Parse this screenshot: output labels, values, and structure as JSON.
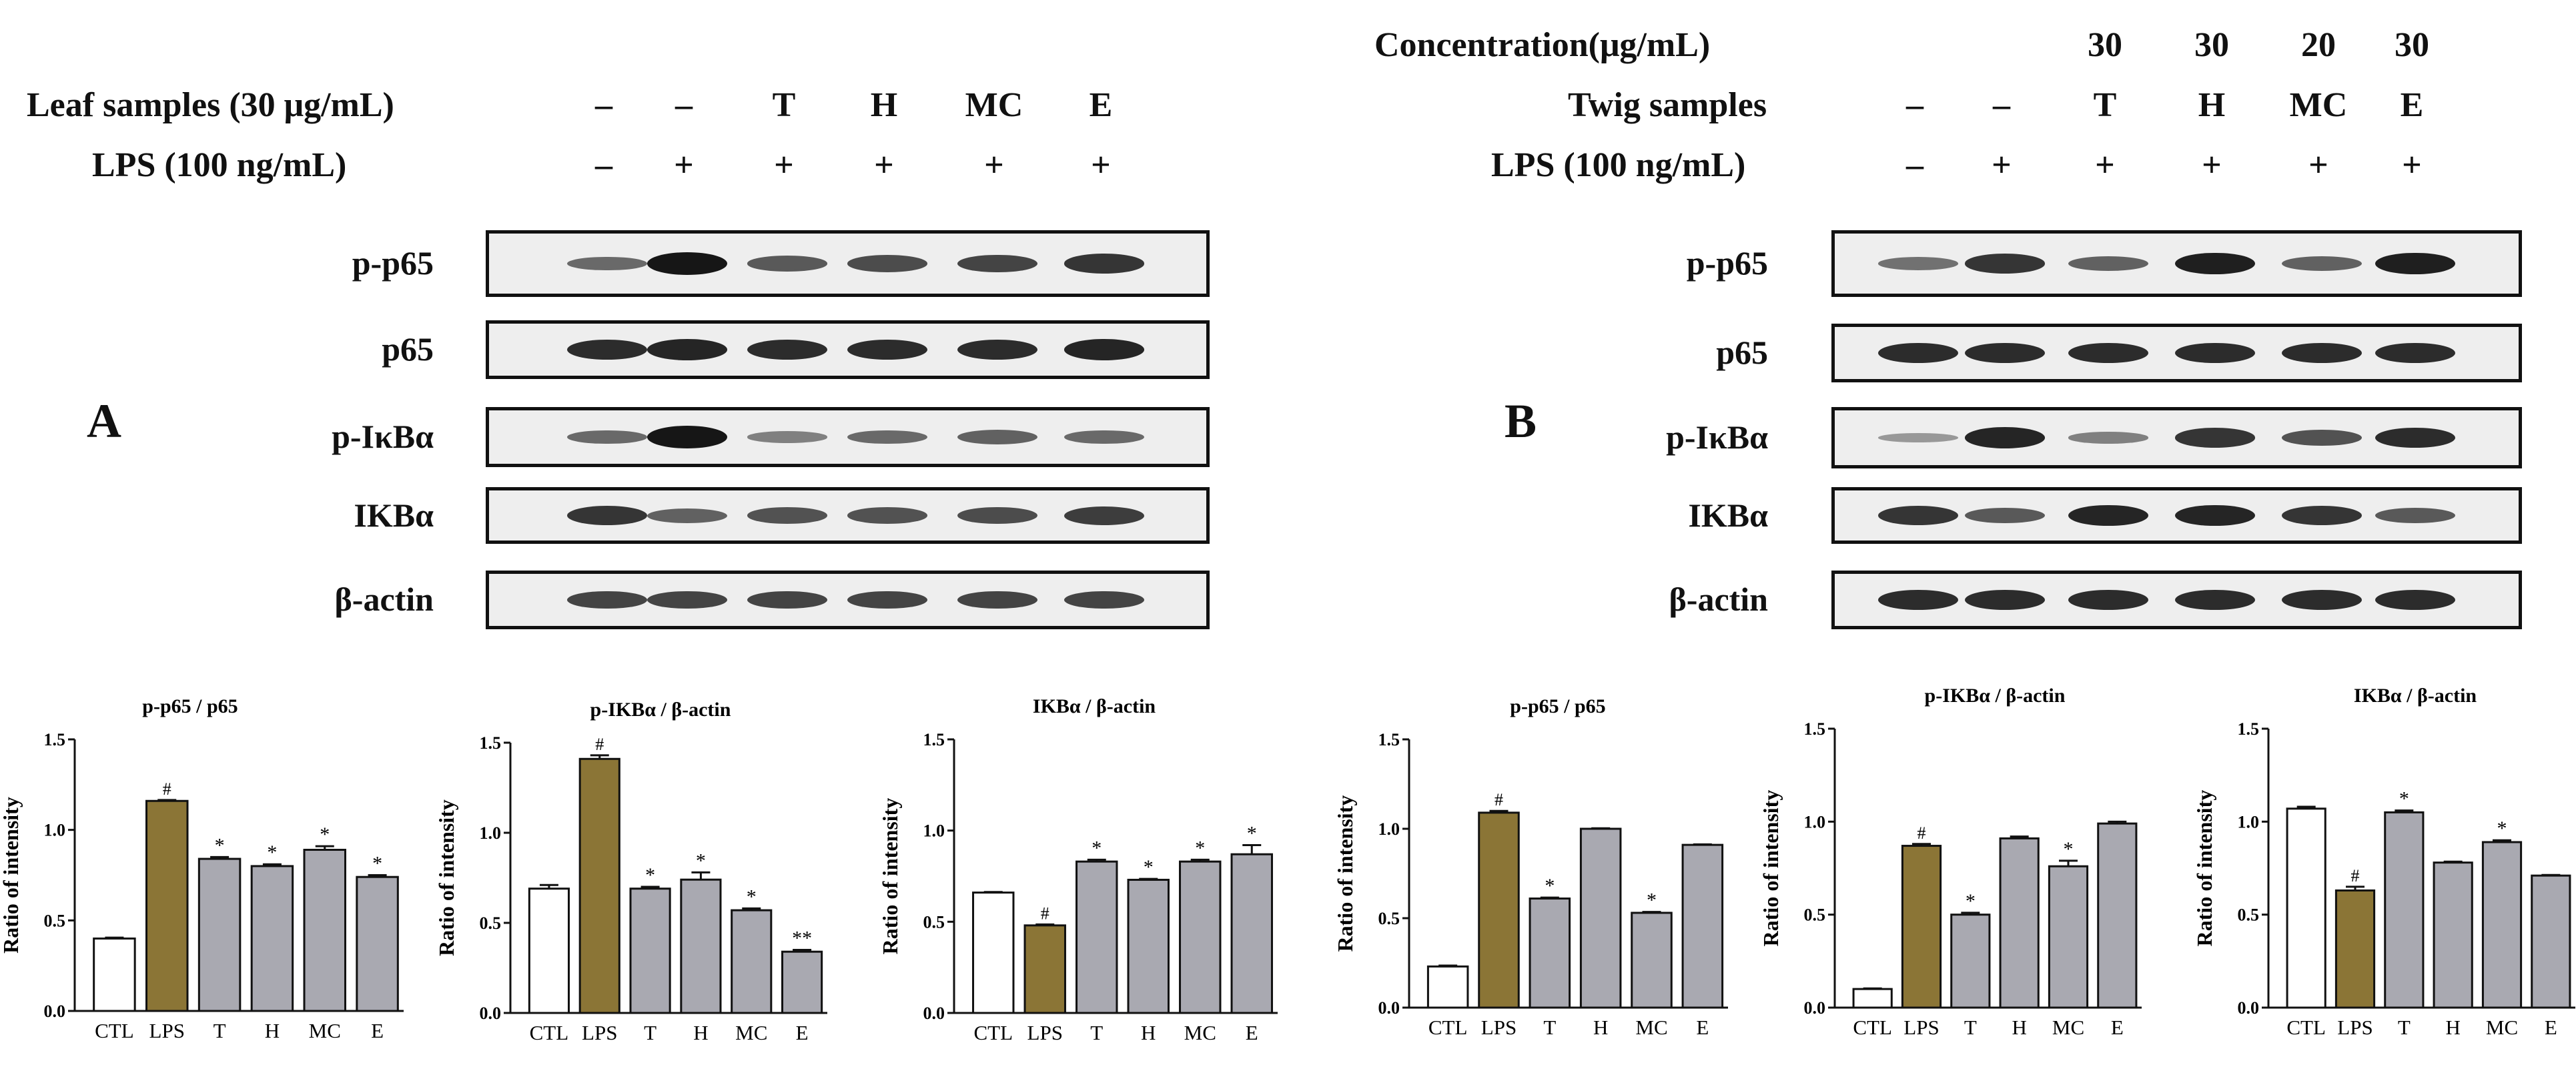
{
  "panels": [
    {
      "label": "A",
      "conc_label": null,
      "concentrations": null,
      "sample_label": "Leaf samples (30 μg/mL)",
      "samples": [
        "–",
        "–",
        "T",
        "H",
        "MC",
        "E"
      ],
      "lps_label": "LPS (100 ng/mL)",
      "lps": [
        "–",
        "+",
        "+",
        "+",
        "+",
        "+"
      ],
      "rows": [
        {
          "name": "p-p65",
          "bands": [
            0.45,
            1.0,
            0.55,
            0.65,
            0.7,
            0.8
          ]
        },
        {
          "name": "p65",
          "bands": [
            0.85,
            0.9,
            0.85,
            0.85,
            0.85,
            0.9
          ]
        },
        {
          "name": "p-IκBα",
          "bands": [
            0.45,
            1.0,
            0.3,
            0.45,
            0.5,
            0.45
          ]
        },
        {
          "name": "IKBα",
          "bands": [
            0.8,
            0.5,
            0.6,
            0.6,
            0.65,
            0.75
          ]
        },
        {
          "name": "β-actin",
          "bands": [
            0.7,
            0.7,
            0.7,
            0.7,
            0.7,
            0.7
          ]
        }
      ]
    },
    {
      "label": "B",
      "conc_label": "Concentration(μg/mL)",
      "concentrations": [
        "",
        "",
        "30",
        "30",
        "20",
        "30"
      ],
      "sample_label": "Twig samples",
      "samples": [
        "–",
        "–",
        "T",
        "H",
        "MC",
        "E"
      ],
      "lps_label": "LPS (100 ng/mL)",
      "lps": [
        "–",
        "+",
        "+",
        "+",
        "+",
        "+"
      ],
      "rows": [
        {
          "name": "p-p65",
          "bands": [
            0.4,
            0.8,
            0.5,
            0.95,
            0.5,
            0.95
          ]
        },
        {
          "name": "p65",
          "bands": [
            0.85,
            0.85,
            0.85,
            0.85,
            0.85,
            0.85
          ]
        },
        {
          "name": "p-IκBα",
          "bands": [
            0.15,
            0.9,
            0.3,
            0.8,
            0.6,
            0.85
          ]
        },
        {
          "name": "IKBα",
          "bands": [
            0.8,
            0.55,
            0.9,
            0.9,
            0.8,
            0.55
          ]
        },
        {
          "name": "β-actin",
          "bands": [
            0.85,
            0.85,
            0.85,
            0.85,
            0.85,
            0.85
          ]
        }
      ]
    }
  ],
  "colors": {
    "ctl": "#ffffff",
    "lps": "#8b7536",
    "treat": "#a9a9b1",
    "edge": "#111111"
  },
  "chart_data": [
    {
      "type": "bar",
      "title": "p-p65 / p65",
      "ylabel": "Ratio of intensity",
      "xlabel": "",
      "categories": [
        "CTL",
        "LPS",
        "T",
        "H",
        "MC",
        "E"
      ],
      "values": [
        0.4,
        1.16,
        0.84,
        0.8,
        0.89,
        0.74
      ],
      "errors": [
        0.005,
        0.005,
        0.01,
        0.01,
        0.02,
        0.01
      ],
      "annotations": [
        "",
        "#",
        "*",
        "*",
        "*",
        "*"
      ],
      "ylim": [
        0,
        1.5
      ],
      "yticks": [
        "0.0",
        "0.5",
        "1.0",
        "1.5"
      ]
    },
    {
      "type": "bar",
      "title": "p-IKBα / β-actin",
      "ylabel": "Ratio of intensity",
      "xlabel": "",
      "categories": [
        "CTL",
        "LPS",
        "T",
        "H",
        "MC",
        "E"
      ],
      "values": [
        0.69,
        1.41,
        0.69,
        0.74,
        0.57,
        0.34
      ],
      "errors": [
        0.02,
        0.02,
        0.01,
        0.04,
        0.01,
        0.01
      ],
      "annotations": [
        "",
        "#",
        "*",
        "*",
        "*",
        "**"
      ],
      "ylim": [
        0,
        1.5
      ],
      "yticks": [
        "0.0",
        "0.5",
        "1.0",
        "1.5"
      ]
    },
    {
      "type": "bar",
      "title": "IKBα / β-actin",
      "ylabel": "Ratio of intensity",
      "xlabel": "",
      "categories": [
        "CTL",
        "LPS",
        "T",
        "H",
        "MC",
        "E"
      ],
      "values": [
        0.66,
        0.48,
        0.83,
        0.73,
        0.83,
        0.87
      ],
      "errors": [
        0.003,
        0.005,
        0.01,
        0.005,
        0.01,
        0.05
      ],
      "annotations": [
        "",
        "#",
        "*",
        "*",
        "*",
        "*"
      ],
      "ylim": [
        0,
        1.5
      ],
      "yticks": [
        "0.0",
        "0.5",
        "1.0",
        "1.5"
      ]
    },
    {
      "type": "bar",
      "title": "p-p65 / p65",
      "ylabel": "Ratio of intensity",
      "xlabel": "",
      "categories": [
        "CTL",
        "LPS",
        "T",
        "H",
        "MC",
        "E"
      ],
      "values": [
        0.23,
        1.09,
        0.61,
        1.0,
        0.53,
        0.91
      ],
      "errors": [
        0.005,
        0.01,
        0.005,
        0.003,
        0.005,
        0.003
      ],
      "annotations": [
        "",
        "#",
        "*",
        "",
        "*",
        ""
      ],
      "ylim": [
        0,
        1.5
      ],
      "yticks": [
        "0.0",
        "0.5",
        "1.0",
        "1.5"
      ]
    },
    {
      "type": "bar",
      "title": "p-IKBα / β-actin",
      "ylabel": "Ratio of intensity",
      "xlabel": "",
      "categories": [
        "CTL",
        "LPS",
        "T",
        "H",
        "MC",
        "E"
      ],
      "values": [
        0.1,
        0.87,
        0.5,
        0.91,
        0.76,
        0.99
      ],
      "errors": [
        0.003,
        0.01,
        0.01,
        0.01,
        0.03,
        0.01
      ],
      "annotations": [
        "",
        "#",
        "*",
        "",
        "*",
        ""
      ],
      "ylim": [
        0,
        1.5
      ],
      "yticks": [
        "0.0",
        "0.5",
        "1.0",
        "1.5"
      ]
    },
    {
      "type": "bar",
      "title": "IKBα / β-actin",
      "ylabel": "Ratio of intensity",
      "xlabel": "",
      "categories": [
        "CTL",
        "LPS",
        "T",
        "H",
        "MC",
        "E"
      ],
      "values": [
        1.07,
        0.63,
        1.05,
        0.78,
        0.89,
        0.71
      ],
      "errors": [
        0.01,
        0.02,
        0.01,
        0.005,
        0.01,
        0.003
      ],
      "annotations": [
        "",
        "#",
        "*",
        "",
        "*",
        ""
      ],
      "ylim": [
        0,
        1.5
      ],
      "yticks": [
        "0.0",
        "0.5",
        "1.0",
        "1.5"
      ]
    }
  ]
}
